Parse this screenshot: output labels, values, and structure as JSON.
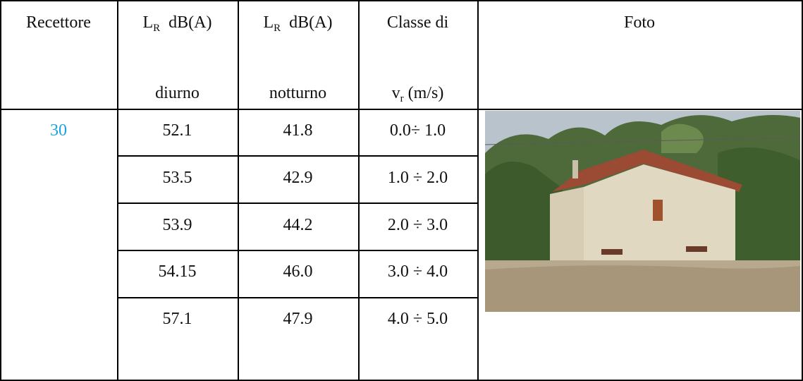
{
  "table": {
    "header": {
      "recettore": "Recettore",
      "diurno": {
        "symbol": "L",
        "sub": "R",
        "unit": "dB(A)",
        "period": "diurno"
      },
      "notturno": {
        "symbol": "L",
        "sub": "R",
        "unit": "dB(A)",
        "period": "notturno"
      },
      "classe": {
        "line1": "Classe di",
        "symbol": "v",
        "sub": "r",
        "unit": "(m/s)"
      },
      "foto": "Foto"
    },
    "recettore": "30",
    "rows": [
      [
        "52.1",
        "41.8",
        "0.0÷ 1.0"
      ],
      [
        "53.5",
        "42.9",
        "1.0 ÷ 2.0"
      ],
      [
        "53.9",
        "44.2",
        "2.0 ÷ 3.0"
      ],
      [
        "54.15",
        "46.0",
        "3.0 ÷ 4.0"
      ],
      [
        "57.1",
        "47.9",
        "4.0 ÷ 5.0"
      ]
    ]
  }
}
